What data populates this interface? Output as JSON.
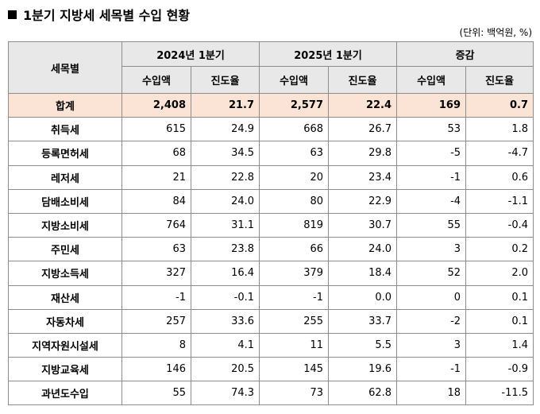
{
  "title": "1분기 지방세 세목별 수입 현황",
  "unit": "(단위: 백억원, %)",
  "header": {
    "item_col": "세목별",
    "groups": [
      "2024년 1분기",
      "2025년 1분기",
      "증감"
    ],
    "sub_revenue": "수입액",
    "sub_progress": "진도율"
  },
  "rows": [
    {
      "name": "합계",
      "v": [
        "2,408",
        "21.7",
        "2,577",
        "22.4",
        "169",
        "0.7"
      ]
    },
    {
      "name": "취득세",
      "v": [
        "615",
        "24.9",
        "668",
        "26.7",
        "53",
        "1.8"
      ]
    },
    {
      "name": "등록면허세",
      "v": [
        "68",
        "34.5",
        "63",
        "29.8",
        "-5",
        "-4.7"
      ]
    },
    {
      "name": "레저세",
      "v": [
        "21",
        "22.8",
        "20",
        "23.4",
        "-1",
        "0.6"
      ]
    },
    {
      "name": "담배소비세",
      "v": [
        "84",
        "24.0",
        "80",
        "22.9",
        "-4",
        "-1.1"
      ]
    },
    {
      "name": "지방소비세",
      "v": [
        "764",
        "31.1",
        "819",
        "30.7",
        "55",
        "-0.4"
      ]
    },
    {
      "name": "주민세",
      "v": [
        "63",
        "23.8",
        "66",
        "24.0",
        "3",
        "0.2"
      ]
    },
    {
      "name": "지방소득세",
      "v": [
        "327",
        "16.4",
        "379",
        "18.4",
        "52",
        "2.0"
      ]
    },
    {
      "name": "재산세",
      "v": [
        "-1",
        "-0.1",
        "-1",
        "0.0",
        "0",
        "0.1"
      ]
    },
    {
      "name": "자동차세",
      "v": [
        "257",
        "33.6",
        "255",
        "33.7",
        "-2",
        "0.1"
      ]
    },
    {
      "name": "지역자원시설세",
      "v": [
        "8",
        "4.1",
        "11",
        "5.5",
        "3",
        "1.4"
      ]
    },
    {
      "name": "지방교육세",
      "v": [
        "146",
        "20.5",
        "145",
        "19.6",
        "-1",
        "-0.9"
      ]
    },
    {
      "name": "과년도수입",
      "v": [
        "55",
        "74.3",
        "73",
        "62.8",
        "18",
        "-11.5"
      ]
    }
  ]
}
